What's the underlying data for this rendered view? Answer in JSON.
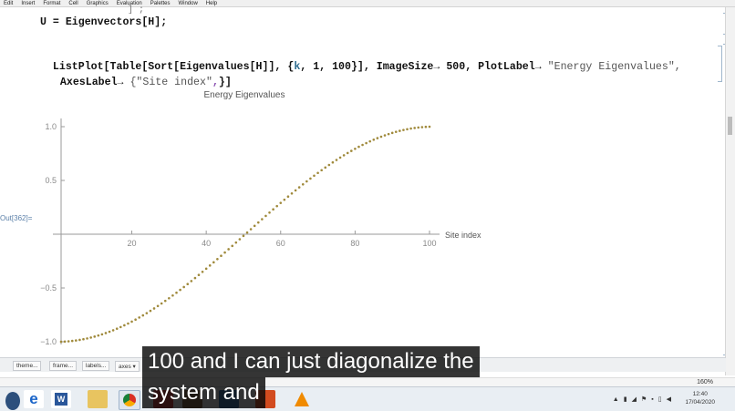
{
  "menubar": {
    "items": [
      "Edit",
      "Insert",
      "Format",
      "Cell",
      "Graphics",
      "Evaluation",
      "Palettes",
      "Window",
      "Help"
    ]
  },
  "notebook": {
    "top_fragment": "] ;",
    "line1": "U = Eigenvectors[H];",
    "line2_a": "ListPlot[Table[Sort[Eigenvalues[H]], {",
    "line2_k": "k",
    "line2_b": ", 1, 100}], ImageSize",
    "arrow": "→",
    "line2_c": " 500, PlotLabel",
    "line2_d": " \"Energy Eigenvalues\",",
    "line3_a": "AxesLabel",
    "line3_b": " {\"Site index\"",
    "line3_c": ",",
    "line3_d": "}]",
    "out_label": "Out[362]="
  },
  "chart_data": {
    "type": "scatter",
    "title": "Energy Eigenvalues",
    "xlabel": "Site index",
    "ylabel": "",
    "n_points": 100,
    "formula_shown": "Sort[Eigenvalues[H]] for k = 1..100 (approx. -cos(pi*k/101))",
    "xlim": [
      1,
      100
    ],
    "ylim": [
      -1.0,
      1.0
    ],
    "x_ticks": [
      20,
      40,
      60,
      80,
      100
    ],
    "x_tick_labels": [
      "20",
      "40",
      "60",
      "80",
      "100"
    ],
    "y_ticks": [
      -1.0,
      -0.5,
      0.5,
      1.0
    ],
    "y_tick_labels": [
      "-1.0",
      "-0.5",
      "0.5",
      "1.0"
    ],
    "point_color": "#a08a3c",
    "grid": false
  },
  "bottom_toolbar": {
    "items": [
      "theme...",
      "frame...",
      "labels...",
      "axes ▾"
    ]
  },
  "zoom": "160%",
  "taskbar": {
    "clock_time": "12:40",
    "clock_date": "17/04/2020"
  },
  "caption": {
    "line1": "100 and I can just diagonalize the",
    "line2": "system and"
  },
  "colors": {
    "link": "#5a7fa8",
    "bracket": "#9fb6cc",
    "points": "#a08a3c"
  }
}
